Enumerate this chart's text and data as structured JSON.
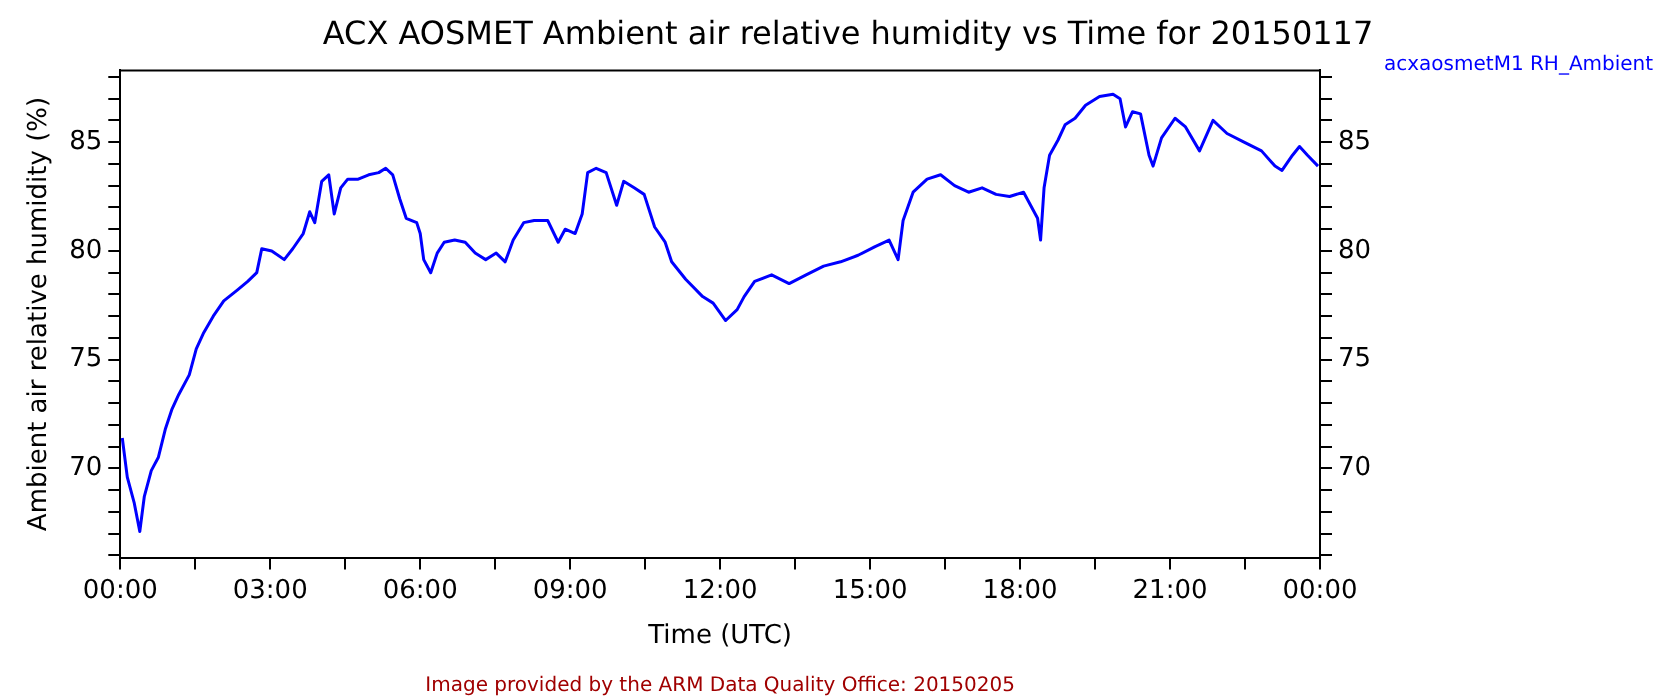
{
  "chart_data": {
    "type": "line",
    "title": "ACX AOSMET Ambient air relative humidity vs Time for 20150117",
    "xlabel": "Time (UTC)",
    "ylabel": "Ambient air relative humidity (%)",
    "annotations": [
      "Image provided by the ARM Data Quality Office: 20150205"
    ],
    "xlim": [
      0,
      24
    ],
    "xticks": [
      {
        "value": 0,
        "label": "00:00"
      },
      {
        "value": 1.5,
        "label": null
      },
      {
        "value": 3,
        "label": "03:00"
      },
      {
        "value": 4.5,
        "label": null
      },
      {
        "value": 6,
        "label": "06:00"
      },
      {
        "value": 7.5,
        "label": null
      },
      {
        "value": 9,
        "label": "09:00"
      },
      {
        "value": 10.5,
        "label": null
      },
      {
        "value": 12,
        "label": "12:00"
      },
      {
        "value": 13.5,
        "label": null
      },
      {
        "value": 15,
        "label": "15:00"
      },
      {
        "value": 16.5,
        "label": null
      },
      {
        "value": 18,
        "label": "18:00"
      },
      {
        "value": 19.5,
        "label": null
      },
      {
        "value": 21,
        "label": "21:00"
      },
      {
        "value": 22.5,
        "label": null
      },
      {
        "value": 24,
        "label": "00:00"
      }
    ],
    "ylim": [
      65.9,
      88.3
    ],
    "yticks": [
      {
        "value": 66,
        "label": null
      },
      {
        "value": 67,
        "label": null
      },
      {
        "value": 68,
        "label": null
      },
      {
        "value": 69,
        "label": null
      },
      70,
      {
        "value": 71,
        "label": null
      },
      {
        "value": 72,
        "label": null
      },
      {
        "value": 73,
        "label": null
      },
      {
        "value": 74,
        "label": null
      },
      75,
      {
        "value": 76,
        "label": null
      },
      {
        "value": 77,
        "label": null
      },
      {
        "value": 78,
        "label": null
      },
      {
        "value": 79,
        "label": null
      },
      80,
      {
        "value": 81,
        "label": null
      },
      {
        "value": 82,
        "label": null
      },
      {
        "value": 83,
        "label": null
      },
      {
        "value": 84,
        "label": null
      },
      85,
      {
        "value": 86,
        "label": null
      },
      {
        "value": 87,
        "label": null
      },
      {
        "value": 88,
        "label": null
      }
    ],
    "y2lim": [
      65.9,
      88.3
    ],
    "y2ticks": [
      {
        "value": 66,
        "label": null
      },
      {
        "value": 67,
        "label": null
      },
      {
        "value": 68,
        "label": null
      },
      {
        "value": 69,
        "label": null
      },
      70,
      {
        "value": 71,
        "label": null
      },
      {
        "value": 72,
        "label": null
      },
      {
        "value": 73,
        "label": null
      },
      {
        "value": 74,
        "label": null
      },
      75,
      {
        "value": 76,
        "label": null
      },
      {
        "value": 77,
        "label": null
      },
      {
        "value": 78,
        "label": null
      },
      {
        "value": 79,
        "label": null
      },
      80,
      {
        "value": 81,
        "label": null
      },
      {
        "value": 82,
        "label": null
      },
      {
        "value": 83,
        "label": null
      },
      {
        "value": 84,
        "label": null
      },
      85,
      {
        "value": 86,
        "label": null
      },
      {
        "value": 87,
        "label": null
      },
      {
        "value": 88,
        "label": null
      }
    ],
    "grid": false,
    "legend": "top right",
    "marker": "none",
    "line_style": "solid",
    "series": [
      {
        "name": "acxaosmetM1 RH_Ambient",
        "color": "#0000ff",
        "x": [
          0.04,
          0.14,
          0.28,
          0.39,
          0.48,
          0.62,
          0.76,
          0.9,
          1.03,
          1.17,
          1.38,
          1.52,
          1.66,
          1.86,
          2.07,
          2.34,
          2.55,
          2.73,
          2.83,
          3.03,
          3.28,
          3.45,
          3.66,
          3.79,
          3.89,
          4.03,
          4.17,
          4.28,
          4.41,
          4.55,
          4.76,
          4.97,
          5.17,
          5.31,
          5.45,
          5.59,
          5.72,
          5.93,
          6.0,
          6.07,
          6.21,
          6.34,
          6.48,
          6.69,
          6.9,
          7.1,
          7.31,
          7.52,
          7.7,
          7.86,
          8.07,
          8.28,
          8.55,
          8.76,
          8.9,
          9.1,
          9.24,
          9.35,
          9.52,
          9.72,
          9.93,
          10.07,
          10.28,
          10.48,
          10.69,
          10.9,
          11.03,
          11.31,
          11.65,
          11.86,
          12.11,
          12.34,
          12.48,
          12.69,
          13.03,
          13.38,
          13.72,
          14.07,
          14.41,
          14.76,
          15.1,
          15.38,
          15.56,
          15.66,
          15.86,
          16.14,
          16.41,
          16.69,
          16.97,
          17.24,
          17.52,
          17.79,
          18.07,
          18.21,
          18.35,
          18.41,
          18.48,
          18.59,
          18.76,
          18.9,
          19.1,
          19.31,
          19.59,
          19.86,
          20.0,
          20.11,
          20.25,
          20.41,
          20.58,
          20.66,
          20.83,
          21.1,
          21.31,
          21.59,
          21.86,
          22.14,
          22.48,
          22.83,
          23.1,
          23.24,
          23.45,
          23.59,
          23.75,
          23.96
        ],
        "values": [
          71.4,
          69.6,
          68.4,
          67.1,
          68.7,
          69.9,
          70.5,
          71.8,
          72.7,
          73.4,
          74.3,
          75.5,
          76.2,
          77.0,
          77.7,
          78.2,
          78.6,
          79.0,
          80.1,
          80.0,
          79.6,
          80.1,
          80.8,
          81.8,
          81.3,
          83.2,
          83.5,
          81.7,
          82.9,
          83.3,
          83.3,
          83.5,
          83.6,
          83.8,
          83.5,
          82.4,
          81.5,
          81.3,
          80.8,
          79.6,
          79.0,
          79.9,
          80.4,
          80.5,
          80.4,
          79.9,
          79.6,
          79.9,
          79.5,
          80.5,
          81.3,
          81.4,
          81.4,
          80.4,
          81.0,
          80.8,
          81.7,
          83.6,
          83.8,
          83.6,
          82.1,
          83.2,
          82.9,
          82.6,
          81.1,
          80.4,
          79.5,
          78.7,
          77.9,
          77.6,
          76.8,
          77.3,
          77.9,
          78.6,
          78.9,
          78.5,
          78.9,
          79.3,
          79.5,
          79.8,
          80.2,
          80.5,
          79.6,
          81.4,
          82.7,
          83.3,
          83.5,
          83.0,
          82.7,
          82.9,
          82.6,
          82.5,
          82.7,
          82.1,
          81.5,
          80.5,
          82.9,
          84.4,
          85.1,
          85.8,
          86.1,
          86.7,
          87.1,
          87.2,
          87.0,
          85.7,
          86.4,
          86.3,
          84.4,
          83.9,
          85.2,
          86.1,
          85.7,
          84.6,
          86.0,
          85.4,
          85.0,
          84.6,
          83.9,
          83.7,
          84.4,
          84.8,
          84.4,
          83.9
        ]
      }
    ]
  }
}
